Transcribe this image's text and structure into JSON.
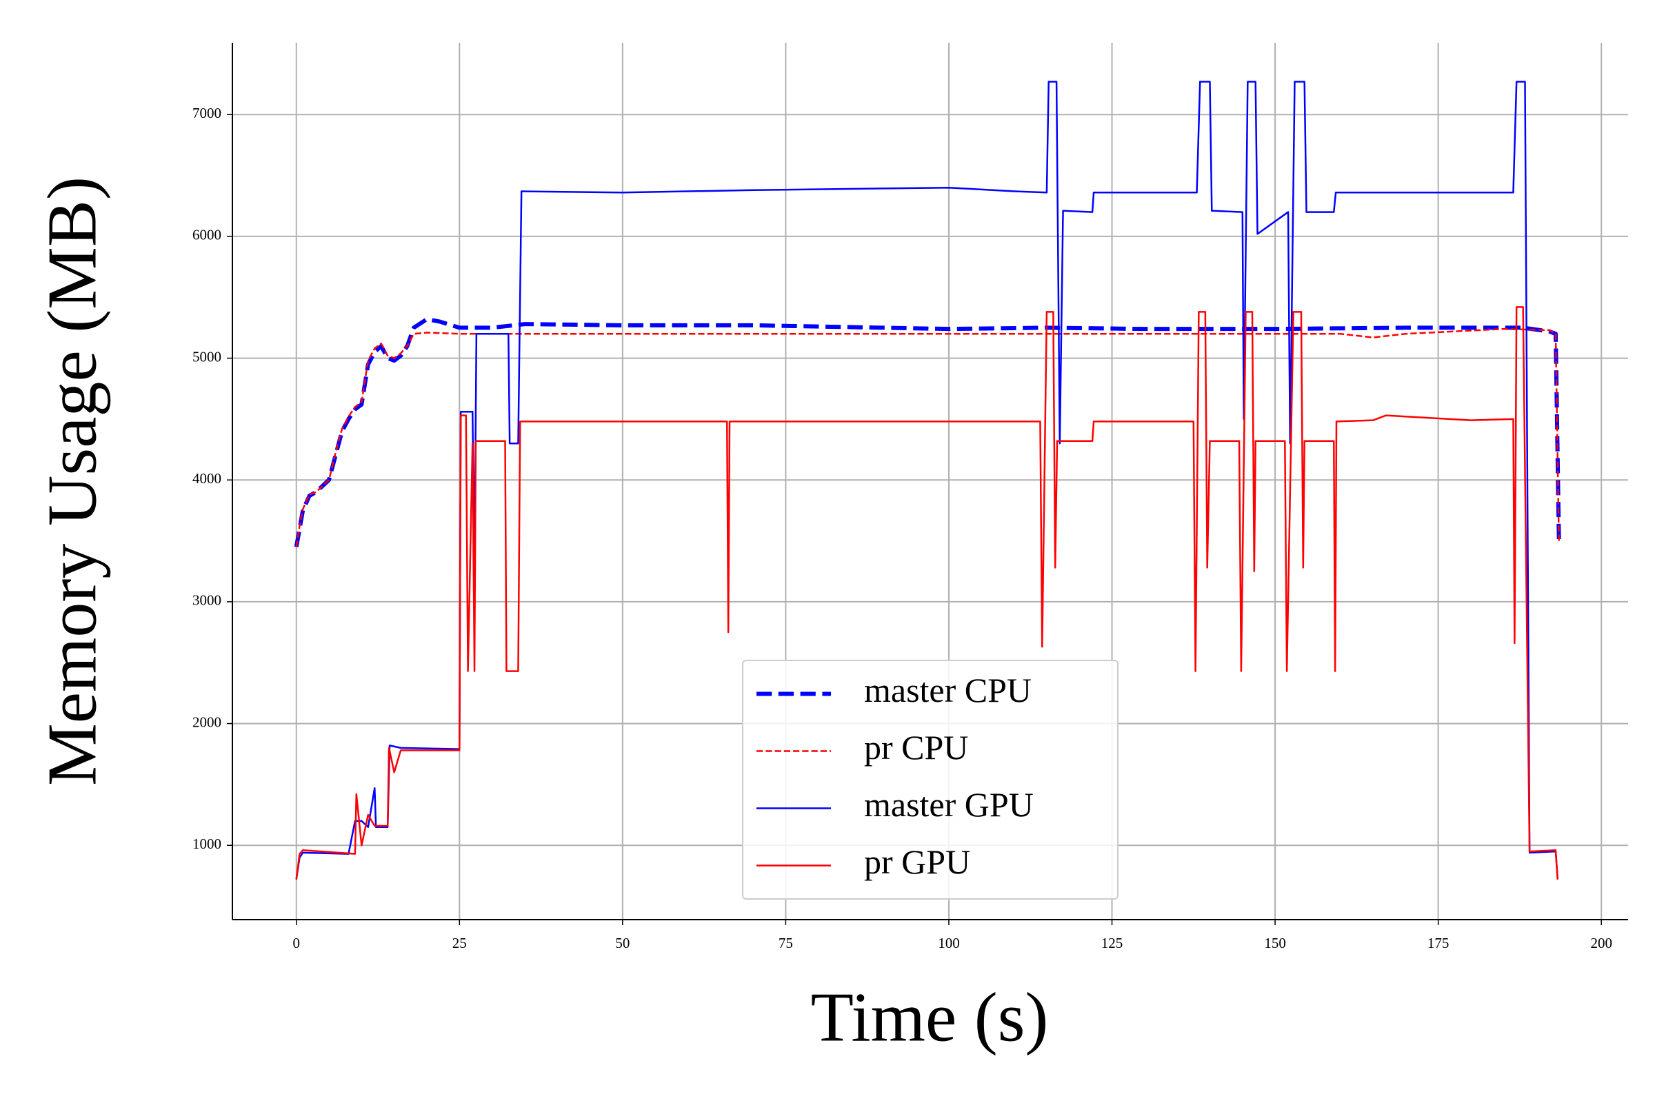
{
  "chart_data": {
    "type": "line",
    "xlabel": "Time (s)",
    "ylabel": "Memory Usage (MB)",
    "xlim": [
      -9.8,
      204.1
    ],
    "ylim": [
      390,
      7590
    ],
    "xticks": [
      0,
      25,
      50,
      75,
      100,
      125,
      150,
      175,
      200
    ],
    "yticks": [
      1000,
      2000,
      3000,
      4000,
      5000,
      6000,
      7000
    ],
    "grid": true,
    "legend": "lower center",
    "series": [
      {
        "name": "master CPU",
        "color": "#0000ff",
        "linestyle": "dashed",
        "linewidth": 6,
        "x": [
          0,
          0.5,
          1,
          2,
          3,
          5,
          6,
          7,
          8,
          9,
          10,
          11,
          12,
          13,
          14,
          15,
          16,
          17,
          18,
          20,
          22,
          25,
          30,
          35,
          50,
          70,
          100,
          115,
          130,
          150,
          170,
          188,
          192,
          193,
          193.5
        ],
        "values": [
          3450,
          3600,
          3750,
          3870,
          3900,
          4000,
          4200,
          4400,
          4500,
          4580,
          4620,
          4950,
          5050,
          5100,
          5000,
          4980,
          5020,
          5100,
          5250,
          5320,
          5300,
          5250,
          5250,
          5280,
          5270,
          5270,
          5240,
          5250,
          5240,
          5240,
          5250,
          5250,
          5220,
          5200,
          3500
        ]
      },
      {
        "name": "pr CPU",
        "color": "#ff0000",
        "linestyle": "dashed",
        "linewidth": 2.5,
        "x": [
          0,
          0.5,
          1,
          2,
          3,
          5,
          6,
          7,
          8,
          9,
          10,
          11,
          12,
          13,
          14,
          15,
          16,
          17,
          18,
          20,
          25,
          50,
          100,
          150,
          160,
          165,
          170,
          185,
          192,
          193,
          193.5
        ],
        "values": [
          3450,
          3620,
          3760,
          3880,
          3900,
          4000,
          4220,
          4420,
          4520,
          4600,
          4640,
          4980,
          5080,
          5120,
          5020,
          5000,
          5040,
          5100,
          5200,
          5210,
          5200,
          5200,
          5200,
          5200,
          5200,
          5170,
          5200,
          5240,
          5230,
          5200,
          3480
        ]
      },
      {
        "name": "master GPU",
        "color": "#0000ff",
        "linestyle": "solid",
        "linewidth": 2.5,
        "x": [
          0,
          0.5,
          1,
          8,
          9,
          10,
          11,
          12,
          12.2,
          14,
          14.3,
          16,
          25,
          25.2,
          27,
          27.3,
          27.6,
          32.5,
          32.7,
          34,
          34.5,
          50,
          70,
          100,
          110,
          115,
          115.3,
          116.5,
          117,
          117.5,
          122,
          122.2,
          138,
          138.5,
          140,
          140.3,
          145,
          145.2,
          145.8,
          147,
          147.3,
          152,
          152.3,
          153,
          154.5,
          154.8,
          159,
          159.3,
          186.5,
          187,
          188.3,
          189,
          193,
          193.3
        ],
        "values": [
          720,
          900,
          940,
          930,
          1200,
          1200,
          1150,
          1470,
          1150,
          1150,
          1820,
          1800,
          1790,
          4560,
          4560,
          3300,
          5200,
          5200,
          4300,
          4300,
          6370,
          6360,
          6380,
          6400,
          6370,
          6360,
          7270,
          7270,
          4300,
          6210,
          6200,
          6360,
          6360,
          7270,
          7270,
          6210,
          6200,
          4500,
          7270,
          7270,
          6020,
          6200,
          4300,
          7270,
          7270,
          6200,
          6200,
          6360,
          6360,
          7270,
          7270,
          940,
          950,
          720
        ]
      },
      {
        "name": "pr GPU",
        "color": "#ff0000",
        "linestyle": "solid",
        "linewidth": 2.5,
        "x": [
          0,
          0.5,
          1,
          9,
          9.2,
          10,
          11,
          12,
          14,
          14.2,
          15,
          16,
          25,
          25.2,
          26,
          26.3,
          27,
          27.3,
          27.5,
          32,
          32.2,
          34,
          34.3,
          66,
          66.2,
          66.4,
          114,
          114.3,
          115,
          116,
          116.3,
          116.6,
          122,
          122.2,
          137.5,
          137.8,
          138.3,
          139.3,
          139.6,
          140,
          144.5,
          144.8,
          145.5,
          146.5,
          146.8,
          147,
          151.5,
          151.8,
          152.8,
          154,
          154.3,
          154.5,
          159,
          159.2,
          159.4,
          165,
          167,
          180,
          186.5,
          186.7,
          187,
          188,
          189,
          193,
          193.3
        ],
        "values": [
          720,
          930,
          960,
          930,
          1420,
          1000,
          1250,
          1160,
          1160,
          1800,
          1600,
          1780,
          1780,
          4530,
          4530,
          2430,
          4300,
          2430,
          4320,
          4320,
          2430,
          2430,
          4480,
          4480,
          2750,
          4480,
          4480,
          2630,
          5380,
          5380,
          3280,
          4320,
          4320,
          4480,
          4480,
          2430,
          5380,
          5380,
          3280,
          4320,
          4320,
          2430,
          5380,
          5380,
          3250,
          4320,
          4320,
          2430,
          5380,
          5380,
          3280,
          4320,
          4320,
          2430,
          4480,
          4490,
          4530,
          4490,
          4500,
          2660,
          5420,
          5420,
          950,
          960,
          720
        ]
      }
    ]
  }
}
